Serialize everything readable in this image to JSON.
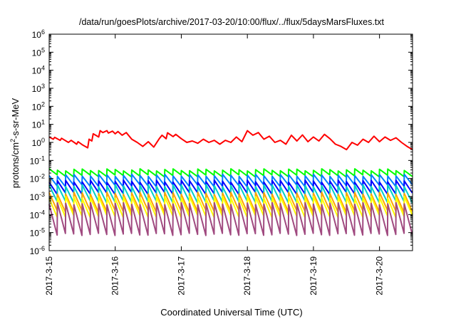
{
  "chart_data": {
    "type": "line",
    "title": "/data/run/goesPlots/archive/2017-03-20/10:00/flux/../flux/5daysMarsFluxes.txt",
    "xlabel": "Coordinated Universal Time (UTC)",
    "ylabel": {
      "prefix": "protons/cm",
      "sup": "2",
      "suffix": "-s-sr-MeV"
    },
    "yscale": "log",
    "ylim": [
      1e-06,
      1000000.0
    ],
    "xlim": [
      "2017-03-15 00:00",
      "2017-03-20 12:00"
    ],
    "grid": false,
    "legend": "none",
    "y_ticks": [
      {
        "base": "10",
        "exp": "-6"
      },
      {
        "base": "10",
        "exp": "-5"
      },
      {
        "base": "10",
        "exp": "-4"
      },
      {
        "base": "10",
        "exp": "-3"
      },
      {
        "base": "10",
        "exp": "-2"
      },
      {
        "base": "10",
        "exp": "-1"
      },
      {
        "base": "10",
        "exp": "0"
      },
      {
        "base": "10",
        "exp": "1"
      },
      {
        "base": "10",
        "exp": "2"
      },
      {
        "base": "10",
        "exp": "3"
      },
      {
        "base": "10",
        "exp": "4"
      },
      {
        "base": "10",
        "exp": "5"
      },
      {
        "base": "10",
        "exp": "6"
      }
    ],
    "x_ticks": [
      "2017-3-15",
      "2017-3-16",
      "2017-3-17",
      "2017-3-18",
      "2017-3-19",
      "2017-3-20"
    ],
    "series": [
      {
        "color": "#ff0000",
        "x": [
          "2017-03-15 00:00",
          "2017-03-15 01:30",
          "2017-03-15 02:00",
          "2017-03-15 04:00",
          "2017-03-15 04:30",
          "2017-03-15 07:00",
          "2017-03-15 08:00",
          "2017-03-15 10:00",
          "2017-03-15 10:30",
          "2017-03-15 12:00",
          "2017-03-15 14:00",
          "2017-03-15 14:30",
          "2017-03-15 15:30",
          "2017-03-15 16:00",
          "2017-03-15 18:00",
          "2017-03-15 18:30",
          "2017-03-15 19:30",
          "2017-03-15 21:00",
          "2017-03-15 21:30",
          "2017-03-15 23:00",
          "2017-03-16 00:00",
          "2017-03-16 01:00",
          "2017-03-16 02:30",
          "2017-03-16 04:00",
          "2017-03-16 06:00",
          "2017-03-16 08:00",
          "2017-03-16 10:00",
          "2017-03-16 12:00",
          "2017-03-16 14:00",
          "2017-03-16 16:00",
          "2017-03-16 17:00",
          "2017-03-16 18:30",
          "2017-03-16 19:00",
          "2017-03-16 21:00",
          "2017-03-16 22:00",
          "2017-03-17 00:00",
          "2017-03-17 02:00",
          "2017-03-17 04:00",
          "2017-03-17 06:00",
          "2017-03-17 08:00",
          "2017-03-17 10:00",
          "2017-03-17 12:00",
          "2017-03-17 14:00",
          "2017-03-17 16:00",
          "2017-03-17 18:00",
          "2017-03-17 20:00",
          "2017-03-17 22:00",
          "2017-03-18 00:00",
          "2017-03-18 02:00",
          "2017-03-18 04:00",
          "2017-03-18 06:00",
          "2017-03-18 08:00",
          "2017-03-18 10:00",
          "2017-03-18 12:00",
          "2017-03-18 14:00",
          "2017-03-18 16:00",
          "2017-03-18 18:00",
          "2017-03-18 20:00",
          "2017-03-18 22:00",
          "2017-03-19 00:00",
          "2017-03-19 02:00",
          "2017-03-19 04:00",
          "2017-03-19 06:00",
          "2017-03-19 08:00",
          "2017-03-19 10:00",
          "2017-03-19 12:00",
          "2017-03-19 14:00",
          "2017-03-19 16:00",
          "2017-03-19 18:00",
          "2017-03-19 20:00",
          "2017-03-19 22:00",
          "2017-03-20 00:00",
          "2017-03-20 02:00",
          "2017-03-20 04:00",
          "2017-03-20 06:00",
          "2017-03-20 08:00",
          "2017-03-20 10:00",
          "2017-03-20 12:00"
        ],
        "y": [
          2.0,
          1.5,
          1.9,
          1.3,
          1.7,
          1.0,
          1.3,
          0.8,
          1.1,
          0.75,
          0.5,
          1.5,
          1.2,
          3.0,
          2.0,
          4.5,
          3.5,
          4.5,
          3.3,
          4.2,
          3.0,
          4.0,
          2.5,
          3.5,
          1.5,
          1.0,
          0.6,
          1.1,
          0.55,
          1.6,
          2.5,
          1.6,
          3.4,
          2.1,
          2.8,
          1.6,
          1.0,
          1.2,
          0.9,
          1.5,
          1.0,
          1.3,
          0.8,
          1.3,
          1.0,
          2.0,
          1.1,
          4.5,
          2.5,
          3.5,
          1.5,
          2.2,
          1.0,
          1.3,
          0.8,
          2.5,
          1.2,
          2.6,
          1.1,
          2.0,
          1.2,
          2.8,
          1.6,
          0.8,
          0.6,
          0.4,
          1.0,
          0.7,
          1.5,
          1.0,
          2.2,
          1.1,
          2.0,
          1.3,
          1.8,
          1.0,
          0.6,
          0.4
        ]
      },
      {
        "color": "#00ff00",
        "sawtooth": {
          "peaks": 44,
          "high": 0.03,
          "low": 0.014
        }
      },
      {
        "color": "#0080ff",
        "sawtooth": {
          "peaks": 44,
          "high": 0.015,
          "low": 0.004
        }
      },
      {
        "color": "#0000ff",
        "sawtooth": {
          "peaks": 44,
          "high": 0.007,
          "low": 0.0015
        }
      },
      {
        "color": "#00d0c8",
        "sawtooth": {
          "peaks": 44,
          "high": 0.004,
          "low": 0.0005
        }
      },
      {
        "color": "#ffa500",
        "sawtooth": {
          "peaks": 44,
          "high": 0.0015,
          "low": 0.00015
        }
      },
      {
        "color": "#ffff00",
        "sawtooth": {
          "peaks": 44,
          "high": 0.0009,
          "low": 8e-05
        }
      },
      {
        "color": "#a04a80",
        "sawtooth": {
          "peaks": 44,
          "high": 0.0004,
          "low": 8e-06
        }
      }
    ]
  }
}
